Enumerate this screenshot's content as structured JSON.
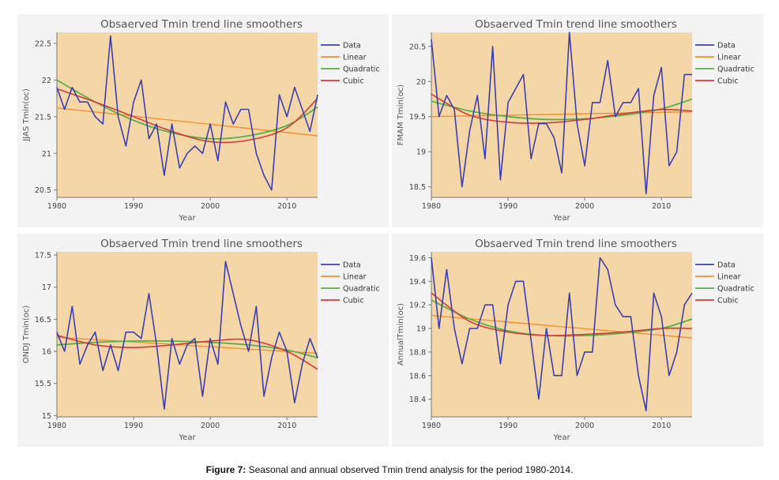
{
  "caption": {
    "label": "Figure 7:",
    "text": " Seasonal and annual observed Tmin trend analysis for the period 1980-2014."
  },
  "colors": {
    "plot_bg": "#f5d7a7",
    "panel_bg": "#f3f3f3",
    "data": "#3b3fb0",
    "linear": "#f3902f",
    "quadratic": "#57b246",
    "cubic": "#d63c37"
  },
  "chart_data": [
    {
      "type": "line",
      "title": "Obsaerved Tmin trend line smoothers",
      "xlabel": "Year",
      "ylabel": "JJAS Tmin(oc)",
      "xlim": [
        1980,
        2014
      ],
      "ylim": [
        20.4,
        22.65
      ],
      "xticks": [
        1980,
        1990,
        2000,
        2010
      ],
      "yticks": [
        20.5,
        21,
        21.5,
        22,
        22.5
      ],
      "ytick_labels": [
        "20.5",
        "21",
        "21.5",
        "22",
        "22.5"
      ],
      "legend": [
        "Data",
        "Linear",
        "Quadratic",
        "Cubic"
      ],
      "legend_position": "top-right",
      "series": [
        {
          "name": "Data",
          "x": [
            1980,
            1981,
            1982,
            1983,
            1984,
            1985,
            1986,
            1987,
            1988,
            1989,
            1990,
            1991,
            1992,
            1993,
            1994,
            1995,
            1996,
            1997,
            1998,
            1999,
            2000,
            2001,
            2002,
            2003,
            2004,
            2005,
            2006,
            2007,
            2008,
            2009,
            2010,
            2011,
            2012,
            2013,
            2014
          ],
          "values": [
            21.9,
            21.6,
            21.9,
            21.7,
            21.7,
            21.5,
            21.4,
            22.6,
            21.5,
            21.1,
            21.7,
            22.0,
            21.2,
            21.4,
            20.7,
            21.4,
            20.8,
            21.0,
            21.1,
            21.0,
            21.4,
            20.9,
            21.7,
            21.4,
            21.6,
            21.6,
            21.0,
            20.7,
            20.5,
            21.8,
            21.5,
            21.9,
            21.6,
            21.3,
            21.8
          ]
        },
        {
          "name": "Linear",
          "x": [
            1980,
            2014
          ],
          "values": [
            21.62,
            21.24
          ]
        },
        {
          "name": "Quadratic",
          "x": [
            1980,
            1985,
            1990,
            1995,
            2000,
            2005,
            2010,
            2014
          ],
          "values": [
            22.0,
            21.7,
            21.45,
            21.28,
            21.2,
            21.24,
            21.38,
            21.63
          ]
        },
        {
          "name": "Cubic",
          "x": [
            1980,
            1985,
            1990,
            1995,
            2000,
            2005,
            2010,
            2014
          ],
          "values": [
            21.88,
            21.7,
            21.5,
            21.3,
            21.16,
            21.18,
            21.35,
            21.75
          ]
        }
      ]
    },
    {
      "type": "line",
      "title": "Obsaerved Tmin trend line smoothers",
      "xlabel": "Year",
      "ylabel": "FMAM Tmin(oc)",
      "xlim": [
        1980,
        2014
      ],
      "ylim": [
        18.35,
        20.7
      ],
      "xticks": [
        1980,
        1990,
        2000,
        2010
      ],
      "yticks": [
        18.5,
        19,
        19.5,
        20,
        20.5
      ],
      "ytick_labels": [
        "18.5",
        "19",
        "19.5",
        "20",
        "20.5"
      ],
      "legend": [
        "Data",
        "Linear",
        "Quadratic",
        "Cubic"
      ],
      "legend_position": "top-right",
      "series": [
        {
          "name": "Data",
          "x": [
            1980,
            1981,
            1982,
            1983,
            1984,
            1985,
            1986,
            1987,
            1988,
            1989,
            1990,
            1991,
            1992,
            1993,
            1994,
            1995,
            1996,
            1997,
            1998,
            1999,
            2000,
            2001,
            2002,
            2003,
            2004,
            2005,
            2006,
            2007,
            2008,
            2009,
            2010,
            2011,
            2012,
            2013,
            2014
          ],
          "values": [
            20.6,
            19.5,
            19.8,
            19.6,
            18.5,
            19.3,
            19.8,
            18.9,
            20.5,
            18.6,
            19.7,
            19.9,
            20.1,
            18.9,
            19.4,
            19.4,
            19.2,
            18.7,
            20.7,
            19.4,
            18.8,
            19.7,
            19.7,
            20.3,
            19.5,
            19.7,
            19.7,
            19.9,
            18.4,
            19.8,
            20.2,
            18.8,
            19.0,
            20.1,
            20.1
          ]
        },
        {
          "name": "Linear",
          "x": [
            1980,
            2014
          ],
          "values": [
            19.5,
            19.57
          ]
        },
        {
          "name": "Quadratic",
          "x": [
            1980,
            1985,
            1990,
            1995,
            2000,
            2005,
            2010,
            2014
          ],
          "values": [
            19.72,
            19.58,
            19.5,
            19.46,
            19.47,
            19.52,
            19.61,
            19.75
          ]
        },
        {
          "name": "Cubic",
          "x": [
            1980,
            1985,
            1990,
            1995,
            2000,
            2005,
            2010,
            2014
          ],
          "values": [
            19.82,
            19.52,
            19.42,
            19.41,
            19.46,
            19.54,
            19.6,
            19.58
          ]
        }
      ]
    },
    {
      "type": "line",
      "title": "Obsaerved Tmin trend line smoothers",
      "xlabel": "Year",
      "ylabel": "ONDJ Tmin(oc)",
      "xlim": [
        1980,
        2014
      ],
      "ylim": [
        14.98,
        17.55
      ],
      "xticks": [
        1980,
        1990,
        2000,
        2010
      ],
      "yticks": [
        15,
        15.5,
        16,
        16.5,
        17,
        17.5
      ],
      "ytick_labels": [
        "15",
        "15.5",
        "16",
        "16.5",
        "17",
        "17.5"
      ],
      "legend": [
        "Data",
        "Linear",
        "Quadratic",
        "Cubic"
      ],
      "legend_position": "top-right",
      "series": [
        {
          "name": "Data",
          "x": [
            1980,
            1981,
            1982,
            1983,
            1984,
            1985,
            1986,
            1987,
            1988,
            1989,
            1990,
            1991,
            1992,
            1993,
            1994,
            1995,
            1996,
            1997,
            1998,
            1999,
            2000,
            2001,
            2002,
            2003,
            2004,
            2005,
            2006,
            2007,
            2008,
            2009,
            2010,
            2011,
            2012,
            2013,
            2014
          ],
          "values": [
            16.3,
            16.0,
            16.7,
            15.8,
            16.1,
            16.3,
            15.7,
            16.1,
            15.7,
            16.3,
            16.3,
            16.2,
            16.9,
            16.1,
            15.1,
            16.2,
            15.8,
            16.1,
            16.2,
            15.3,
            16.2,
            15.8,
            17.4,
            16.9,
            16.4,
            16.0,
            16.7,
            15.3,
            15.9,
            16.3,
            16.0,
            15.2,
            15.8,
            16.2,
            15.9
          ]
        },
        {
          "name": "Linear",
          "x": [
            1980,
            2014
          ],
          "values": [
            16.22,
            15.97
          ]
        },
        {
          "name": "Quadratic",
          "x": [
            1980,
            1985,
            1990,
            1995,
            2000,
            2005,
            2010,
            2014
          ],
          "values": [
            16.1,
            16.14,
            16.16,
            16.16,
            16.14,
            16.1,
            16.02,
            15.9
          ]
        },
        {
          "name": "Cubic",
          "x": [
            1980,
            1985,
            1990,
            1995,
            2000,
            2005,
            2010,
            2014
          ],
          "values": [
            16.25,
            16.1,
            16.06,
            16.1,
            16.16,
            16.18,
            16.0,
            15.72
          ]
        }
      ]
    },
    {
      "type": "line",
      "title": "Obsaerved Tmin trend line smoothers",
      "xlabel": "Year",
      "ylabel": "AnnualTmin(oc)",
      "xlim": [
        1980,
        2014
      ],
      "ylim": [
        18.25,
        19.65
      ],
      "xticks": [
        1980,
        1990,
        2000,
        2010
      ],
      "yticks": [
        18.4,
        18.6,
        18.8,
        19,
        19.2,
        19.4,
        19.6
      ],
      "ytick_labels": [
        "18.4",
        "18.6",
        "18.8",
        "19",
        "19.2",
        "19.4",
        "19.6"
      ],
      "legend": [
        "Data",
        "Linear",
        "Quadratic",
        "Cubic"
      ],
      "legend_position": "top-right",
      "series": [
        {
          "name": "Data",
          "x": [
            1980,
            1981,
            1982,
            1983,
            1984,
            1985,
            1986,
            1987,
            1988,
            1989,
            1990,
            1991,
            1992,
            1993,
            1994,
            1995,
            1996,
            1997,
            1998,
            1999,
            2000,
            2001,
            2002,
            2003,
            2004,
            2005,
            2006,
            2007,
            2008,
            2009,
            2010,
            2011,
            2012,
            2013,
            2014
          ],
          "values": [
            19.6,
            19.0,
            19.5,
            19.0,
            18.7,
            19.0,
            19.0,
            19.2,
            19.2,
            18.7,
            19.2,
            19.4,
            19.4,
            18.9,
            18.4,
            19.0,
            18.6,
            18.6,
            19.3,
            18.6,
            18.8,
            18.8,
            19.6,
            19.5,
            19.2,
            19.1,
            19.1,
            18.6,
            18.3,
            19.3,
            19.1,
            18.6,
            18.8,
            19.2,
            19.3
          ]
        },
        {
          "name": "Linear",
          "x": [
            1980,
            2014
          ],
          "values": [
            19.11,
            18.92
          ]
        },
        {
          "name": "Quadratic",
          "x": [
            1980,
            1985,
            1990,
            1995,
            2000,
            2005,
            2010,
            2014
          ],
          "values": [
            19.24,
            19.08,
            18.98,
            18.94,
            18.94,
            18.96,
            19.0,
            19.08
          ]
        },
        {
          "name": "Cubic",
          "x": [
            1980,
            1985,
            1990,
            1995,
            2000,
            2005,
            2010,
            2014
          ],
          "values": [
            19.3,
            19.06,
            18.97,
            18.94,
            18.95,
            18.97,
            19.0,
            19.0
          ]
        }
      ]
    }
  ]
}
